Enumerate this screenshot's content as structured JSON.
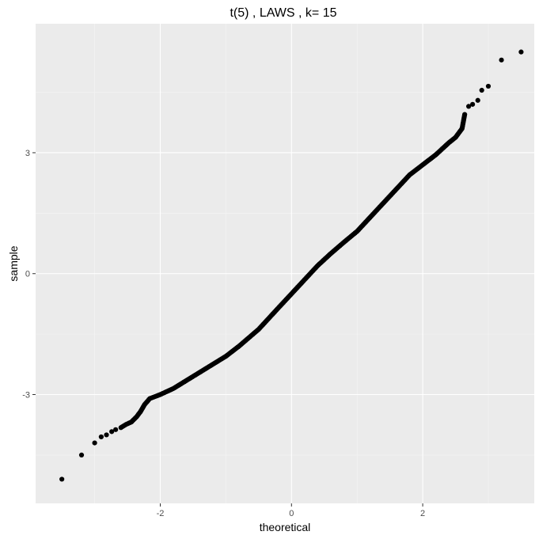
{
  "chart_data": {
    "type": "scatter",
    "title": "t(5) , LAWS , k= 15",
    "xlabel": "theoretical",
    "ylabel": "sample",
    "xlim": [
      -3.9,
      3.7
    ],
    "ylim": [
      -5.7,
      6.2
    ],
    "x_ticks": [
      -2,
      0,
      2
    ],
    "x_tick_labels": [
      "-2",
      "0",
      "2"
    ],
    "y_ticks": [
      -3,
      0,
      3
    ],
    "y_tick_labels": [
      "-3",
      "0",
      "3"
    ],
    "grid": true,
    "legend": "none",
    "colors": {
      "panel": "#ebebeb",
      "grid_major": "#ffffff",
      "grid_minor": "#f5f5f5",
      "point": "#000000",
      "tick_text": "#4d4d4d"
    },
    "series": [
      {
        "values": [
          [
            -3.5,
            -5.1
          ],
          [
            -3.2,
            -4.5
          ],
          [
            -3.0,
            -4.2
          ],
          [
            -2.9,
            -4.05
          ],
          [
            -2.82,
            -4.0
          ],
          [
            -2.74,
            -3.92
          ],
          [
            -2.68,
            -3.87
          ],
          [
            -2.6,
            -3.82
          ],
          [
            -2.52,
            -3.74
          ],
          [
            -2.44,
            -3.68
          ],
          [
            -2.36,
            -3.55
          ],
          [
            -2.3,
            -3.42
          ],
          [
            -2.24,
            -3.25
          ],
          [
            -2.16,
            -3.1
          ],
          [
            -2.0,
            -3.0
          ],
          [
            -1.8,
            -2.85
          ],
          [
            -1.5,
            -2.55
          ],
          [
            -1.2,
            -2.25
          ],
          [
            -1.0,
            -2.05
          ],
          [
            -0.8,
            -1.8
          ],
          [
            -0.5,
            -1.38
          ],
          [
            -0.2,
            -0.85
          ],
          [
            0.0,
            -0.5
          ],
          [
            0.2,
            -0.15
          ],
          [
            0.4,
            0.2
          ],
          [
            0.6,
            0.5
          ],
          [
            0.8,
            0.78
          ],
          [
            1.0,
            1.05
          ],
          [
            1.2,
            1.4
          ],
          [
            1.4,
            1.75
          ],
          [
            1.6,
            2.1
          ],
          [
            1.8,
            2.45
          ],
          [
            2.0,
            2.7
          ],
          [
            2.2,
            2.95
          ],
          [
            2.4,
            3.25
          ],
          [
            2.5,
            3.38
          ],
          [
            2.6,
            3.6
          ],
          [
            2.64,
            3.95
          ],
          [
            2.7,
            4.15
          ],
          [
            2.76,
            4.2
          ],
          [
            2.84,
            4.3
          ],
          [
            2.9,
            4.55
          ],
          [
            3.0,
            4.65
          ],
          [
            3.2,
            5.3
          ],
          [
            3.5,
            5.5
          ]
        ]
      }
    ]
  }
}
